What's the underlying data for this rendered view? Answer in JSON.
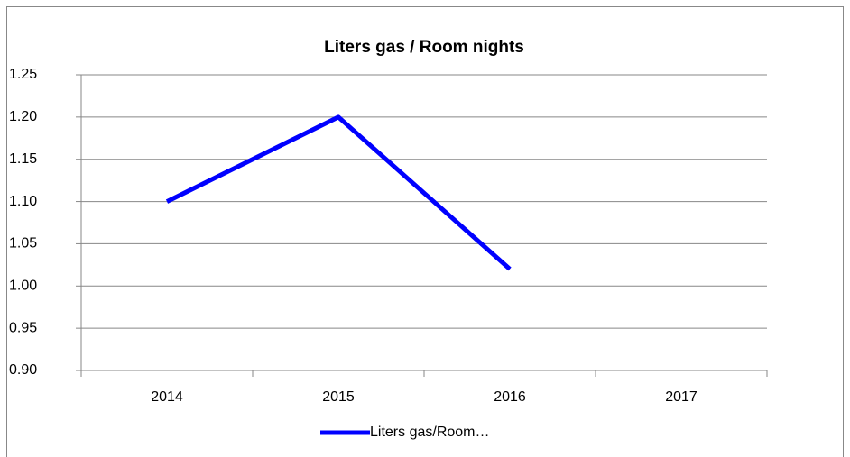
{
  "chart_data": {
    "type": "line",
    "title": "Liters gas / Room nights",
    "categories": [
      "2014",
      "2015",
      "2016",
      "2017"
    ],
    "series": [
      {
        "name": "Liters gas/Room…",
        "color": "#0000ff",
        "values": [
          1.1,
          1.2,
          1.02,
          null
        ]
      }
    ],
    "ylim": [
      0.9,
      1.25
    ],
    "yticks": [
      {
        "value": 0.9,
        "label": "0.90"
      },
      0.95,
      {
        "value": 1.0,
        "label": "1.00"
      },
      1.05,
      {
        "value": 1.1,
        "label": "1.10"
      },
      1.15,
      {
        "value": 1.2,
        "label": "1.20"
      },
      1.25
    ],
    "grid": true,
    "legend": "bottom"
  }
}
